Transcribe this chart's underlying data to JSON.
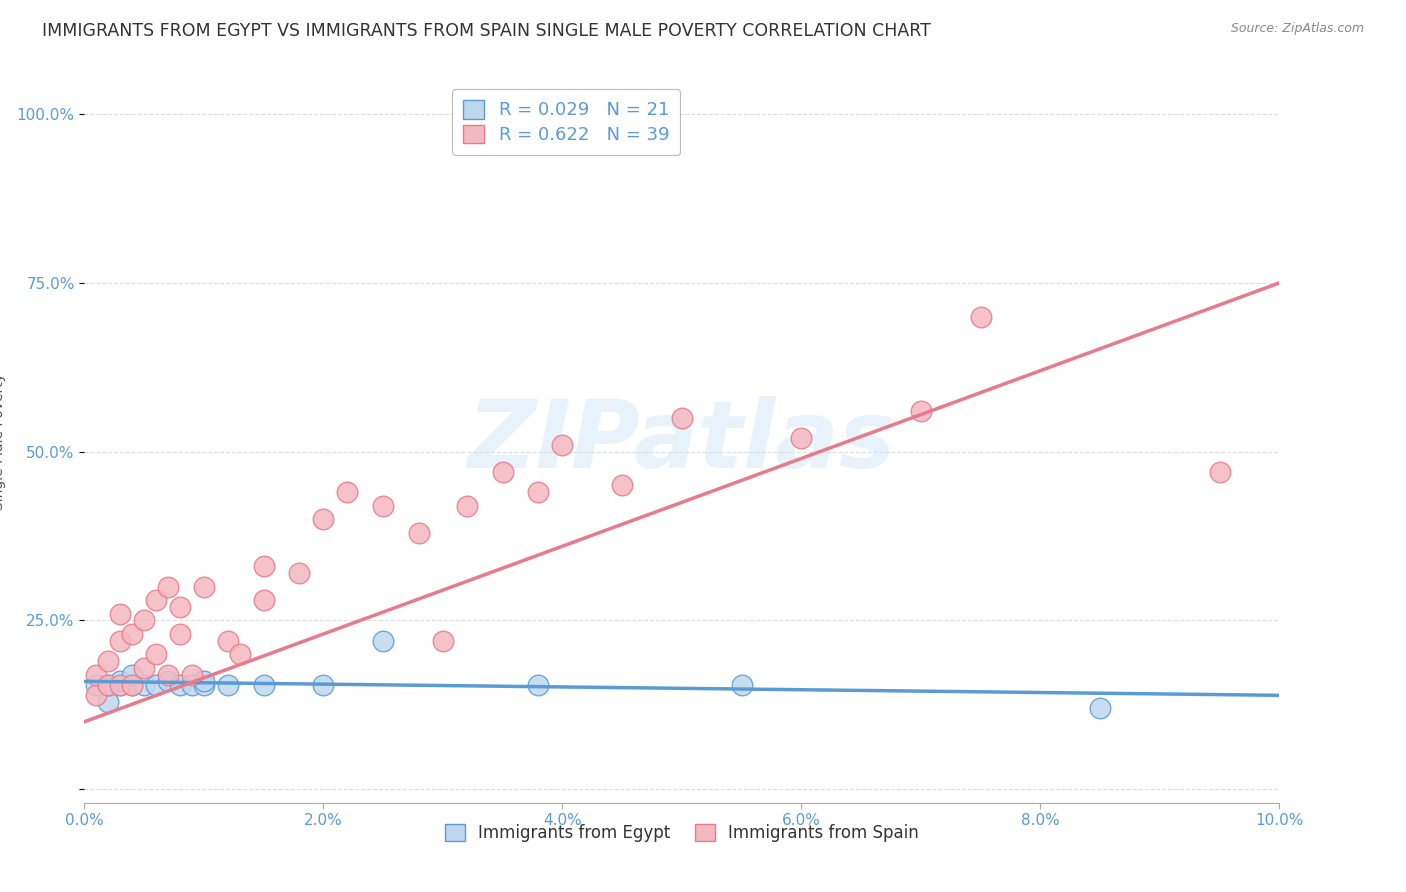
{
  "title": "IMMIGRANTS FROM EGYPT VS IMMIGRANTS FROM SPAIN SINGLE MALE POVERTY CORRELATION CHART",
  "source": "Source: ZipAtlas.com",
  "ylabel": "Single Male Poverty",
  "xlim": [
    0.0,
    0.1
  ],
  "ylim": [
    -0.02,
    1.05
  ],
  "xticks": [
    0.0,
    0.02,
    0.04,
    0.06,
    0.08,
    0.1
  ],
  "xtick_labels": [
    "0.0%",
    "2.0%",
    "4.0%",
    "6.0%",
    "8.0%",
    "10.0%"
  ],
  "yticks": [
    0.0,
    0.25,
    0.5,
    0.75,
    1.0
  ],
  "ytick_labels": [
    "",
    "25.0%",
    "50.0%",
    "75.0%",
    "100.0%"
  ],
  "egypt_color": "#5b9bd5",
  "egypt_color_fill": "#bdd7ee",
  "spain_color": "#e97a8b",
  "spain_color_fill": "#f4b8c1",
  "egypt_R": 0.029,
  "egypt_N": 21,
  "spain_R": 0.622,
  "spain_N": 39,
  "egypt_x": [
    0.001,
    0.002,
    0.002,
    0.003,
    0.003,
    0.004,
    0.004,
    0.005,
    0.006,
    0.007,
    0.008,
    0.009,
    0.01,
    0.01,
    0.012,
    0.015,
    0.02,
    0.025,
    0.038,
    0.055,
    0.085
  ],
  "egypt_y": [
    0.155,
    0.13,
    0.155,
    0.155,
    0.16,
    0.155,
    0.17,
    0.155,
    0.155,
    0.16,
    0.155,
    0.155,
    0.155,
    0.16,
    0.155,
    0.155,
    0.155,
    0.22,
    0.155,
    0.155,
    0.12
  ],
  "spain_x": [
    0.001,
    0.001,
    0.002,
    0.002,
    0.003,
    0.003,
    0.003,
    0.004,
    0.004,
    0.005,
    0.005,
    0.006,
    0.006,
    0.007,
    0.007,
    0.008,
    0.008,
    0.009,
    0.01,
    0.012,
    0.013,
    0.015,
    0.015,
    0.018,
    0.02,
    0.022,
    0.025,
    0.028,
    0.03,
    0.032,
    0.035,
    0.038,
    0.04,
    0.045,
    0.05,
    0.06,
    0.07,
    0.075,
    0.095
  ],
  "spain_y": [
    0.14,
    0.17,
    0.155,
    0.19,
    0.155,
    0.22,
    0.26,
    0.155,
    0.23,
    0.18,
    0.25,
    0.2,
    0.28,
    0.17,
    0.3,
    0.23,
    0.27,
    0.17,
    0.3,
    0.22,
    0.2,
    0.28,
    0.33,
    0.32,
    0.4,
    0.44,
    0.42,
    0.38,
    0.22,
    0.42,
    0.47,
    0.44,
    0.51,
    0.45,
    0.55,
    0.52,
    0.56,
    0.7,
    0.47
  ],
  "watermark_text": "ZIPatlas",
  "background_color": "#ffffff",
  "grid_color": "#dddddd",
  "title_color": "#333333",
  "tick_color": "#5b9bd5",
  "ytick_color": "#5b9bd5",
  "ylabel_color": "#555555",
  "source_color": "#888888",
  "title_fontsize": 12.5,
  "axis_label_fontsize": 10,
  "tick_fontsize": 11,
  "legend_fontsize": 13
}
